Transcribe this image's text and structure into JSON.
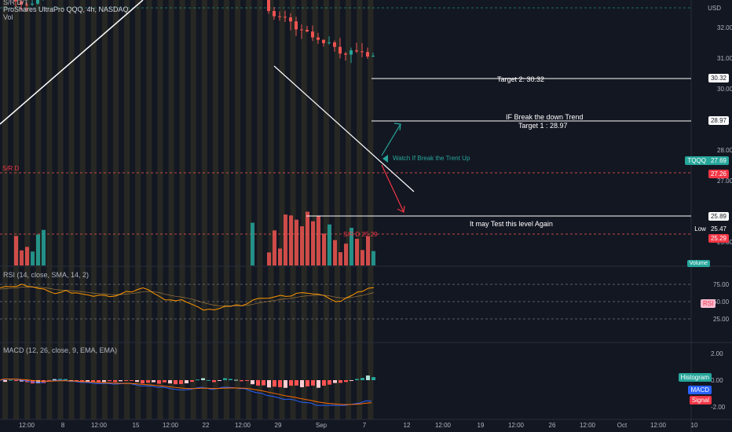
{
  "symbol_info": {
    "top_cut_text": "S/R D/T",
    "title": "ProShares UltraPro QQQ, 4h, NASDAQ",
    "vol_label": "Vol",
    "currency": "USD"
  },
  "price_axis": {
    "ticks": [
      "32.00",
      "31.00",
      "30.00",
      "28.00",
      "27.00",
      "25.00"
    ],
    "tags": [
      {
        "name": "target2-tag",
        "text": "30.32",
        "bg": "#ffffff",
        "color": "#131722"
      },
      {
        "name": "target1-tag",
        "text": "28.97",
        "bg": "#ffffff",
        "color": "#131722"
      },
      {
        "name": "tqqq-tag",
        "text": "27.69",
        "bg": "#26a69a",
        "color": "#ffffff",
        "label": "TQQQ"
      },
      {
        "name": "sr-red-tag",
        "text": "27.26",
        "bg": "#f23645",
        "color": "#ffffff"
      },
      {
        "name": "level-tag",
        "text": "25.89",
        "bg": "#ffffff",
        "color": "#131722"
      },
      {
        "name": "low-tag",
        "text": "25.47",
        "bg": "#131722",
        "color": "#ffffff",
        "label": "Low"
      },
      {
        "name": "sr-low-tag",
        "text": "25.29",
        "bg": "#f23645",
        "color": "#ffffff"
      },
      {
        "name": "volume-tag",
        "text": "Volume",
        "bg": "#26a69a",
        "color": "#ffffff"
      }
    ]
  },
  "annotations": {
    "target2": "Target 2: 30.32",
    "break_trend": "IF Break the down Trend",
    "target1": "Target 1 : 28.97",
    "watch": "Watch If Break the Trent Up",
    "test_level": "It may Test this level Again",
    "sr_left": "S/R D",
    "sr_bottom": "S/R D 25.29"
  },
  "rsi": {
    "label": "RSI (14, close, SMA, 14, 2)",
    "ticks": [
      "75.00",
      "50.00",
      "25.00"
    ],
    "tag": "RSI",
    "tag_color": "#f23645"
  },
  "macd": {
    "label": "MACD (12, 26, close, 9, EMA, EMA)",
    "ticks": [
      "2.00",
      "0.00",
      "-2.00"
    ],
    "tags": [
      {
        "name": "histogram-tag",
        "text": "Histogram",
        "bg": "#26a69a"
      },
      {
        "name": "macd-tag",
        "text": "MACD",
        "bg": "#2962ff"
      },
      {
        "name": "signal-tag",
        "text": "Signal",
        "bg": "#f23645"
      }
    ]
  },
  "time_axis": [
    "12:00",
    "8",
    "12:00",
    "15",
    "12:00",
    "22",
    "12:00",
    "29",
    "Sep",
    "7",
    "12",
    "12:00",
    "19",
    "12:00",
    "26",
    "12:00",
    "Oct",
    "12:00",
    "10"
  ],
  "colors": {
    "bg": "#131722",
    "up": "#26a69a",
    "down": "#ef5350",
    "session": "#2a2a24"
  }
}
